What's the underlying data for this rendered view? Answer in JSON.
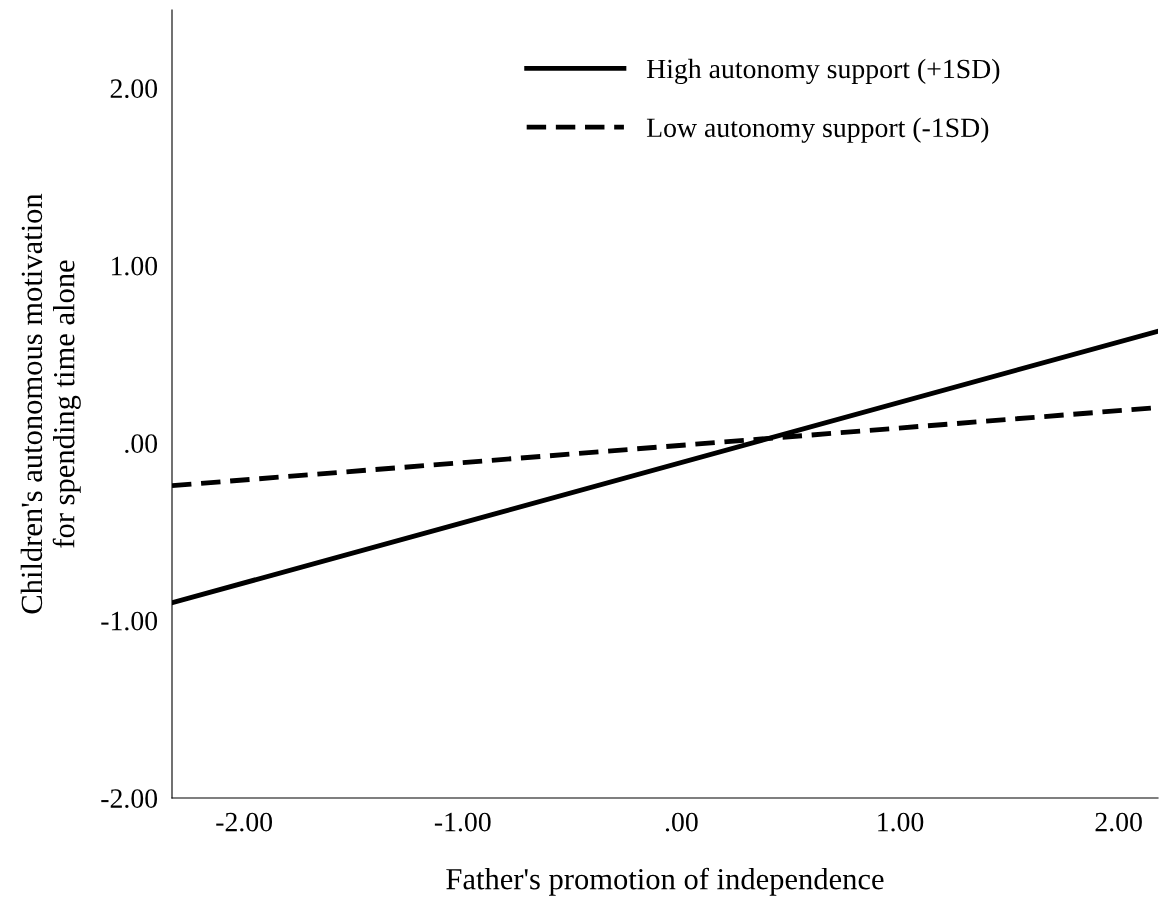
{
  "chart_data": {
    "type": "line",
    "xlabel": "Father's promotion of independence",
    "ylabel": "Children's autonomous motivation\nfor spending time alone",
    "x": [
      -2.33,
      2.18
    ],
    "series": [
      {
        "name": "High autonomy support (+1SD)",
        "color": "#000000",
        "values": [
          -0.9,
          0.63
        ],
        "line_style": "solid"
      },
      {
        "name": "Low autonomy support (-1SD)",
        "color": "#000000",
        "values": [
          -0.24,
          0.2
        ],
        "line_style": "dashed"
      }
    ],
    "xlim": [
      -2.33,
      2.18
    ],
    "ylim": [
      -2.0,
      2.44
    ],
    "xticks": [
      {
        "value": -2,
        "label": "-2.00"
      },
      {
        "value": -1,
        "label": "-1.00"
      },
      {
        "value": 0,
        "label": ".00"
      },
      {
        "value": 1,
        "label": "1.00"
      },
      {
        "value": 2,
        "label": "2.00"
      }
    ],
    "yticks": [
      {
        "value": -2,
        "label": "-2.00"
      },
      {
        "value": -1,
        "label": "-1.00"
      },
      {
        "value": 0,
        "label": ".00"
      },
      {
        "value": 1,
        "label": "1.00"
      },
      {
        "value": 2,
        "label": "2.00"
      }
    ],
    "grid": false,
    "legend": "top"
  }
}
